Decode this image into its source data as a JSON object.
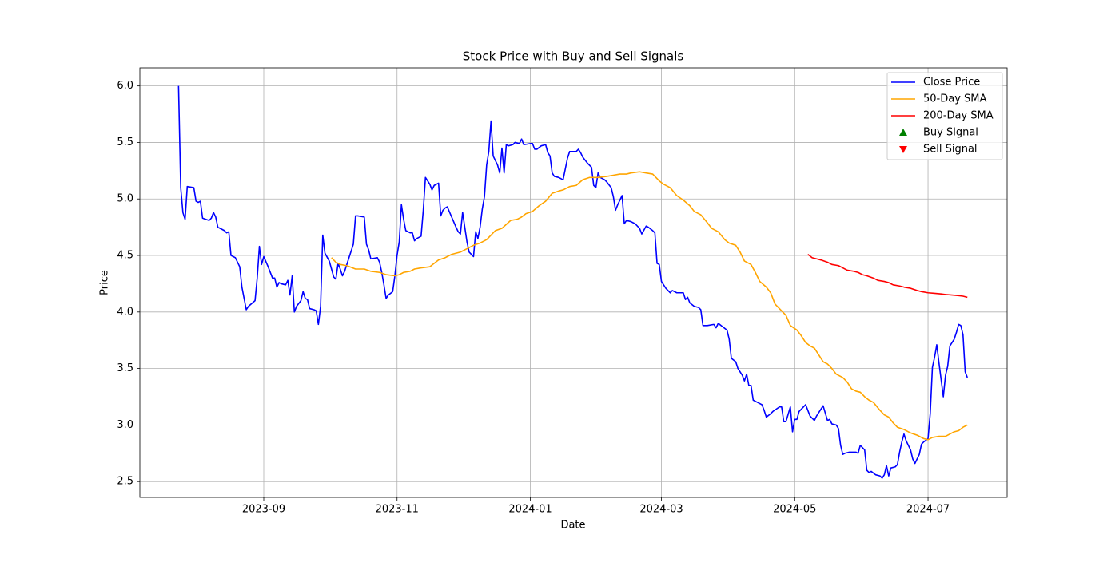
{
  "chart_data": {
    "type": "line",
    "title": "Stock Price with Buy and Sell Signals",
    "x_label": "Date",
    "y_label": "Price",
    "xlim": [
      -56.7,
      340.2
    ],
    "xticks": [
      {
        "value": 0,
        "label": "2023-09"
      },
      {
        "value": 61,
        "label": "2023-11"
      },
      {
        "value": 122,
        "label": "2024-01"
      },
      {
        "value": 182,
        "label": "2024-03"
      },
      {
        "value": 243,
        "label": "2024-05"
      },
      {
        "value": 304,
        "label": "2024-07"
      }
    ],
    "ylim": [
      2.36,
      6.16
    ],
    "yticks": [
      2.5,
      {
        "value": 3,
        "label": "3.0"
      },
      3.5,
      {
        "value": 4,
        "label": "4.0"
      },
      4.5,
      {
        "value": 5,
        "label": "5.0"
      },
      5.5,
      {
        "value": 6,
        "label": "6.0"
      }
    ],
    "grid": true,
    "legend": "upper right",
    "series": [
      {
        "name": "Close Price",
        "color": "#0000ff",
        "marker": "line",
        "x": [
          -39,
          -38,
          -37,
          -36,
          -35,
          -32,
          -31,
          -30,
          -29,
          -28,
          -25,
          -24,
          -23,
          -22,
          -21,
          -18,
          -17,
          -16,
          -15,
          -13,
          -11,
          -10,
          -8,
          -7,
          -4,
          -3,
          -2,
          -1,
          0,
          2,
          4,
          5,
          6,
          7,
          8,
          10,
          11,
          12,
          13,
          14,
          15,
          17,
          18,
          19,
          20,
          21,
          23,
          24,
          25,
          26,
          27,
          28,
          30,
          31,
          32,
          33,
          34,
          35,
          36,
          37,
          38,
          39,
          41,
          42,
          43,
          46,
          47,
          48,
          49,
          52,
          53,
          54,
          55,
          56,
          57,
          59,
          60,
          61,
          62,
          63,
          64,
          65,
          67,
          68,
          69,
          70,
          72,
          73,
          74,
          76,
          77,
          78,
          80,
          81,
          82,
          83,
          84,
          86,
          88,
          89,
          90,
          91,
          92,
          93,
          94,
          96,
          97,
          98,
          99,
          100,
          101,
          102,
          103,
          104,
          105,
          107,
          108,
          109,
          110,
          111,
          112,
          114,
          115,
          117,
          118,
          119,
          122,
          123,
          124,
          125,
          127,
          129,
          130,
          131,
          132,
          133,
          135,
          137,
          139,
          140,
          143,
          144,
          145,
          146,
          148,
          150,
          151,
          152,
          153,
          154,
          156,
          157,
          159,
          160,
          161,
          162,
          164,
          165,
          166,
          168,
          170,
          172,
          173,
          175,
          176,
          178,
          179,
          180,
          181,
          182,
          184,
          186,
          187,
          189,
          190,
          192,
          193,
          194,
          195,
          197,
          199,
          200,
          201,
          203,
          206,
          207,
          208,
          210,
          212,
          213,
          214,
          216,
          217,
          219,
          220,
          221,
          222,
          223,
          224,
          225,
          228,
          229,
          230,
          232,
          233,
          236,
          237,
          238,
          239,
          241,
          242,
          243,
          244,
          245,
          248,
          250,
          252,
          253,
          255,
          256,
          258,
          259,
          260,
          262,
          263,
          264,
          265,
          266,
          268,
          271,
          272,
          273,
          274,
          275,
          276,
          277,
          278,
          280,
          282,
          283,
          284,
          285,
          286,
          287,
          289,
          290,
          291,
          292,
          293,
          294,
          296,
          297,
          298,
          299,
          300,
          301,
          302,
          304,
          305,
          306,
          307,
          308,
          309,
          310,
          311,
          312,
          313,
          314,
          316,
          317,
          318,
          319,
          320,
          321,
          322
        ],
        "values": [
          6.0,
          5.1,
          4.88,
          4.82,
          5.11,
          5.1,
          4.98,
          4.97,
          4.98,
          4.83,
          4.81,
          4.83,
          4.88,
          4.84,
          4.75,
          4.72,
          4.7,
          4.71,
          4.5,
          4.48,
          4.4,
          4.22,
          4.02,
          4.05,
          4.1,
          4.3,
          4.58,
          4.42,
          4.49,
          4.4,
          4.3,
          4.3,
          4.22,
          4.26,
          4.25,
          4.24,
          4.28,
          4.15,
          4.32,
          4.0,
          4.05,
          4.1,
          4.18,
          4.12,
          4.11,
          4.03,
          4.02,
          4.01,
          3.89,
          4.05,
          4.68,
          4.52,
          4.45,
          4.38,
          4.31,
          4.29,
          4.43,
          4.38,
          4.32,
          4.36,
          4.42,
          4.48,
          4.6,
          4.85,
          4.85,
          4.84,
          4.6,
          4.55,
          4.47,
          4.48,
          4.44,
          4.35,
          4.24,
          4.12,
          4.15,
          4.18,
          4.32,
          4.5,
          4.62,
          4.95,
          4.82,
          4.72,
          4.7,
          4.7,
          4.63,
          4.65,
          4.67,
          4.9,
          5.19,
          5.13,
          5.08,
          5.12,
          5.14,
          4.85,
          4.9,
          4.92,
          4.93,
          4.84,
          4.75,
          4.71,
          4.69,
          4.88,
          4.75,
          4.62,
          4.53,
          4.49,
          4.71,
          4.65,
          4.75,
          4.91,
          5.02,
          5.3,
          5.42,
          5.69,
          5.38,
          5.3,
          5.23,
          5.45,
          5.23,
          5.48,
          5.47,
          5.48,
          5.5,
          5.49,
          5.53,
          5.48,
          5.49,
          5.49,
          5.44,
          5.44,
          5.47,
          5.48,
          5.41,
          5.38,
          5.23,
          5.2,
          5.19,
          5.17,
          5.36,
          5.42,
          5.42,
          5.44,
          5.41,
          5.37,
          5.32,
          5.28,
          5.12,
          5.1,
          5.23,
          5.19,
          5.17,
          5.15,
          5.1,
          5.02,
          4.9,
          4.95,
          5.03,
          4.78,
          4.81,
          4.8,
          4.78,
          4.74,
          4.69,
          4.76,
          4.75,
          4.72,
          4.7,
          4.43,
          4.42,
          4.27,
          4.21,
          4.17,
          4.19,
          4.17,
          4.17,
          4.17,
          4.11,
          4.13,
          4.08,
          4.05,
          4.04,
          4.02,
          3.88,
          3.88,
          3.89,
          3.86,
          3.9,
          3.87,
          3.84,
          3.76,
          3.59,
          3.56,
          3.5,
          3.44,
          3.39,
          3.45,
          3.35,
          3.35,
          3.22,
          3.21,
          3.18,
          3.13,
          3.07,
          3.1,
          3.12,
          3.16,
          3.16,
          3.03,
          3.03,
          3.16,
          2.94,
          3.05,
          3.05,
          3.12,
          3.18,
          3.08,
          3.04,
          3.08,
          3.14,
          3.17,
          3.04,
          3.05,
          3.01,
          3.0,
          2.97,
          2.82,
          2.74,
          2.75,
          2.76,
          2.76,
          2.75,
          2.82,
          2.8,
          2.78,
          2.6,
          2.58,
          2.59,
          2.56,
          2.55,
          2.53,
          2.56,
          2.64,
          2.55,
          2.62,
          2.63,
          2.65,
          2.76,
          2.85,
          2.92,
          2.86,
          2.78,
          2.7,
          2.66,
          2.7,
          2.74,
          2.83,
          2.85,
          2.88,
          3.1,
          3.51,
          3.6,
          3.71,
          3.55,
          3.4,
          3.25,
          3.44,
          3.52,
          3.7,
          3.76,
          3.82,
          3.89,
          3.88,
          3.8,
          3.47,
          3.42
        ]
      },
      {
        "name": "50-Day SMA",
        "color": "#ffa500",
        "marker": "line",
        "x": [
          31,
          33,
          35,
          38,
          42,
          46,
          49,
          53,
          56,
          60,
          62,
          64,
          67,
          69,
          72,
          76,
          80,
          83,
          86,
          90,
          93,
          96,
          99,
          102,
          104,
          106,
          109,
          113,
          116,
          118,
          120,
          123,
          126,
          129,
          132,
          135,
          137,
          140,
          143,
          146,
          149,
          153,
          157,
          160,
          163,
          166,
          168,
          172,
          175,
          178,
          181,
          183,
          186,
          189,
          192,
          195,
          197,
          200,
          203,
          205,
          208,
          211,
          213,
          216,
          218,
          220,
          223,
          225,
          227,
          230,
          232,
          234,
          236,
          239,
          241,
          244,
          246,
          248,
          250,
          252,
          254,
          256,
          258,
          260,
          262,
          265,
          267,
          269,
          271,
          273,
          275,
          277,
          279,
          282,
          284,
          286,
          288,
          290,
          293,
          296,
          299,
          302,
          304,
          306,
          309,
          312,
          314,
          316,
          318,
          320,
          322
        ],
        "values": [
          4.48,
          4.44,
          4.42,
          4.41,
          4.38,
          4.38,
          4.36,
          4.35,
          4.33,
          4.32,
          4.33,
          4.35,
          4.36,
          4.38,
          4.39,
          4.4,
          4.46,
          4.48,
          4.51,
          4.53,
          4.56,
          4.59,
          4.61,
          4.64,
          4.68,
          4.72,
          4.74,
          4.81,
          4.82,
          4.84,
          4.87,
          4.89,
          4.94,
          4.98,
          5.05,
          5.07,
          5.08,
          5.11,
          5.12,
          5.17,
          5.19,
          5.19,
          5.2,
          5.21,
          5.22,
          5.22,
          5.23,
          5.24,
          5.23,
          5.22,
          5.16,
          5.13,
          5.1,
          5.03,
          4.99,
          4.94,
          4.89,
          4.86,
          4.79,
          4.74,
          4.71,
          4.64,
          4.61,
          4.59,
          4.53,
          4.45,
          4.42,
          4.35,
          4.27,
          4.22,
          4.17,
          4.07,
          4.03,
          3.97,
          3.88,
          3.84,
          3.79,
          3.73,
          3.7,
          3.68,
          3.62,
          3.56,
          3.54,
          3.5,
          3.45,
          3.42,
          3.38,
          3.32,
          3.3,
          3.29,
          3.25,
          3.22,
          3.2,
          3.13,
          3.09,
          3.07,
          3.02,
          2.98,
          2.96,
          2.93,
          2.91,
          2.88,
          2.87,
          2.89,
          2.9,
          2.9,
          2.92,
          2.94,
          2.95,
          2.98,
          3.0
        ]
      },
      {
        "name": "200-Day SMA",
        "color": "#ff0000",
        "marker": "line",
        "x": [
          249,
          251,
          253,
          255,
          258,
          260,
          263,
          265,
          267,
          270,
          272,
          274,
          276,
          279,
          281,
          284,
          286,
          288,
          291,
          293,
          296,
          299,
          301,
          304,
          307,
          310,
          312,
          315,
          318,
          320,
          322
        ],
        "values": [
          4.51,
          4.48,
          4.47,
          4.46,
          4.44,
          4.42,
          4.41,
          4.39,
          4.37,
          4.36,
          4.35,
          4.33,
          4.32,
          4.3,
          4.28,
          4.27,
          4.26,
          4.24,
          4.23,
          4.22,
          4.21,
          4.19,
          4.18,
          4.17,
          4.165,
          4.16,
          4.155,
          4.15,
          4.145,
          4.14,
          4.13
        ]
      },
      {
        "name": "Buy Signal",
        "color": "#008000",
        "marker": "triangle-up",
        "x": [],
        "values": []
      },
      {
        "name": "Sell Signal",
        "color": "#ff0000",
        "marker": "triangle-down",
        "x": [],
        "values": []
      }
    ]
  }
}
